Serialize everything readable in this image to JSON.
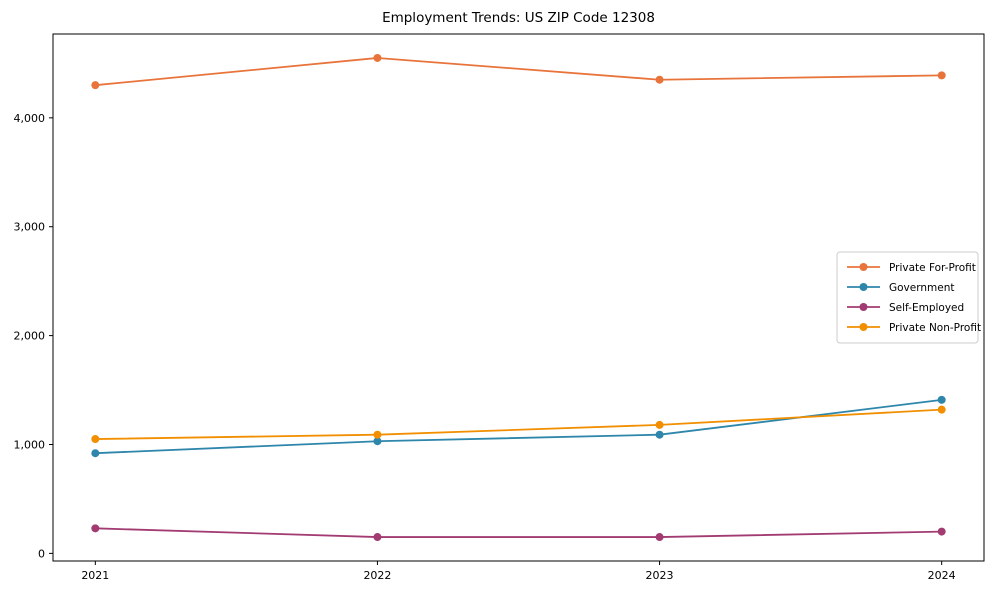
{
  "page": {
    "background": "#ffffff"
  },
  "chart_data": {
    "type": "line",
    "title": "Employment Trends: US ZIP Code 12308",
    "x": [
      2021,
      2022,
      2023,
      2024
    ],
    "x_tick_labels": [
      "2021",
      "2022",
      "2023",
      "2024"
    ],
    "y_ticks": [
      0,
      1000,
      2000,
      3000,
      4000
    ],
    "y_tick_labels": [
      "0",
      "1,000",
      "2,000",
      "3,000",
      "4,000"
    ],
    "xlim": [
      2020.85,
      2024.15
    ],
    "ylim": [
      -70,
      4770
    ],
    "grid": false,
    "legend_position": "center right",
    "axis_color": "#000000",
    "series": [
      {
        "name": "Private For-Profit",
        "color": "#E8743B",
        "values": [
          4300,
          4550,
          4350,
          4390
        ]
      },
      {
        "name": "Government",
        "color": "#2E86AB",
        "values": [
          920,
          1030,
          1090,
          1410
        ]
      },
      {
        "name": "Self-Employed",
        "color": "#A23B72",
        "values": [
          230,
          150,
          150,
          200
        ]
      },
      {
        "name": "Private Non-Profit",
        "color": "#F18F01",
        "values": [
          1050,
          1090,
          1180,
          1320
        ]
      }
    ]
  }
}
